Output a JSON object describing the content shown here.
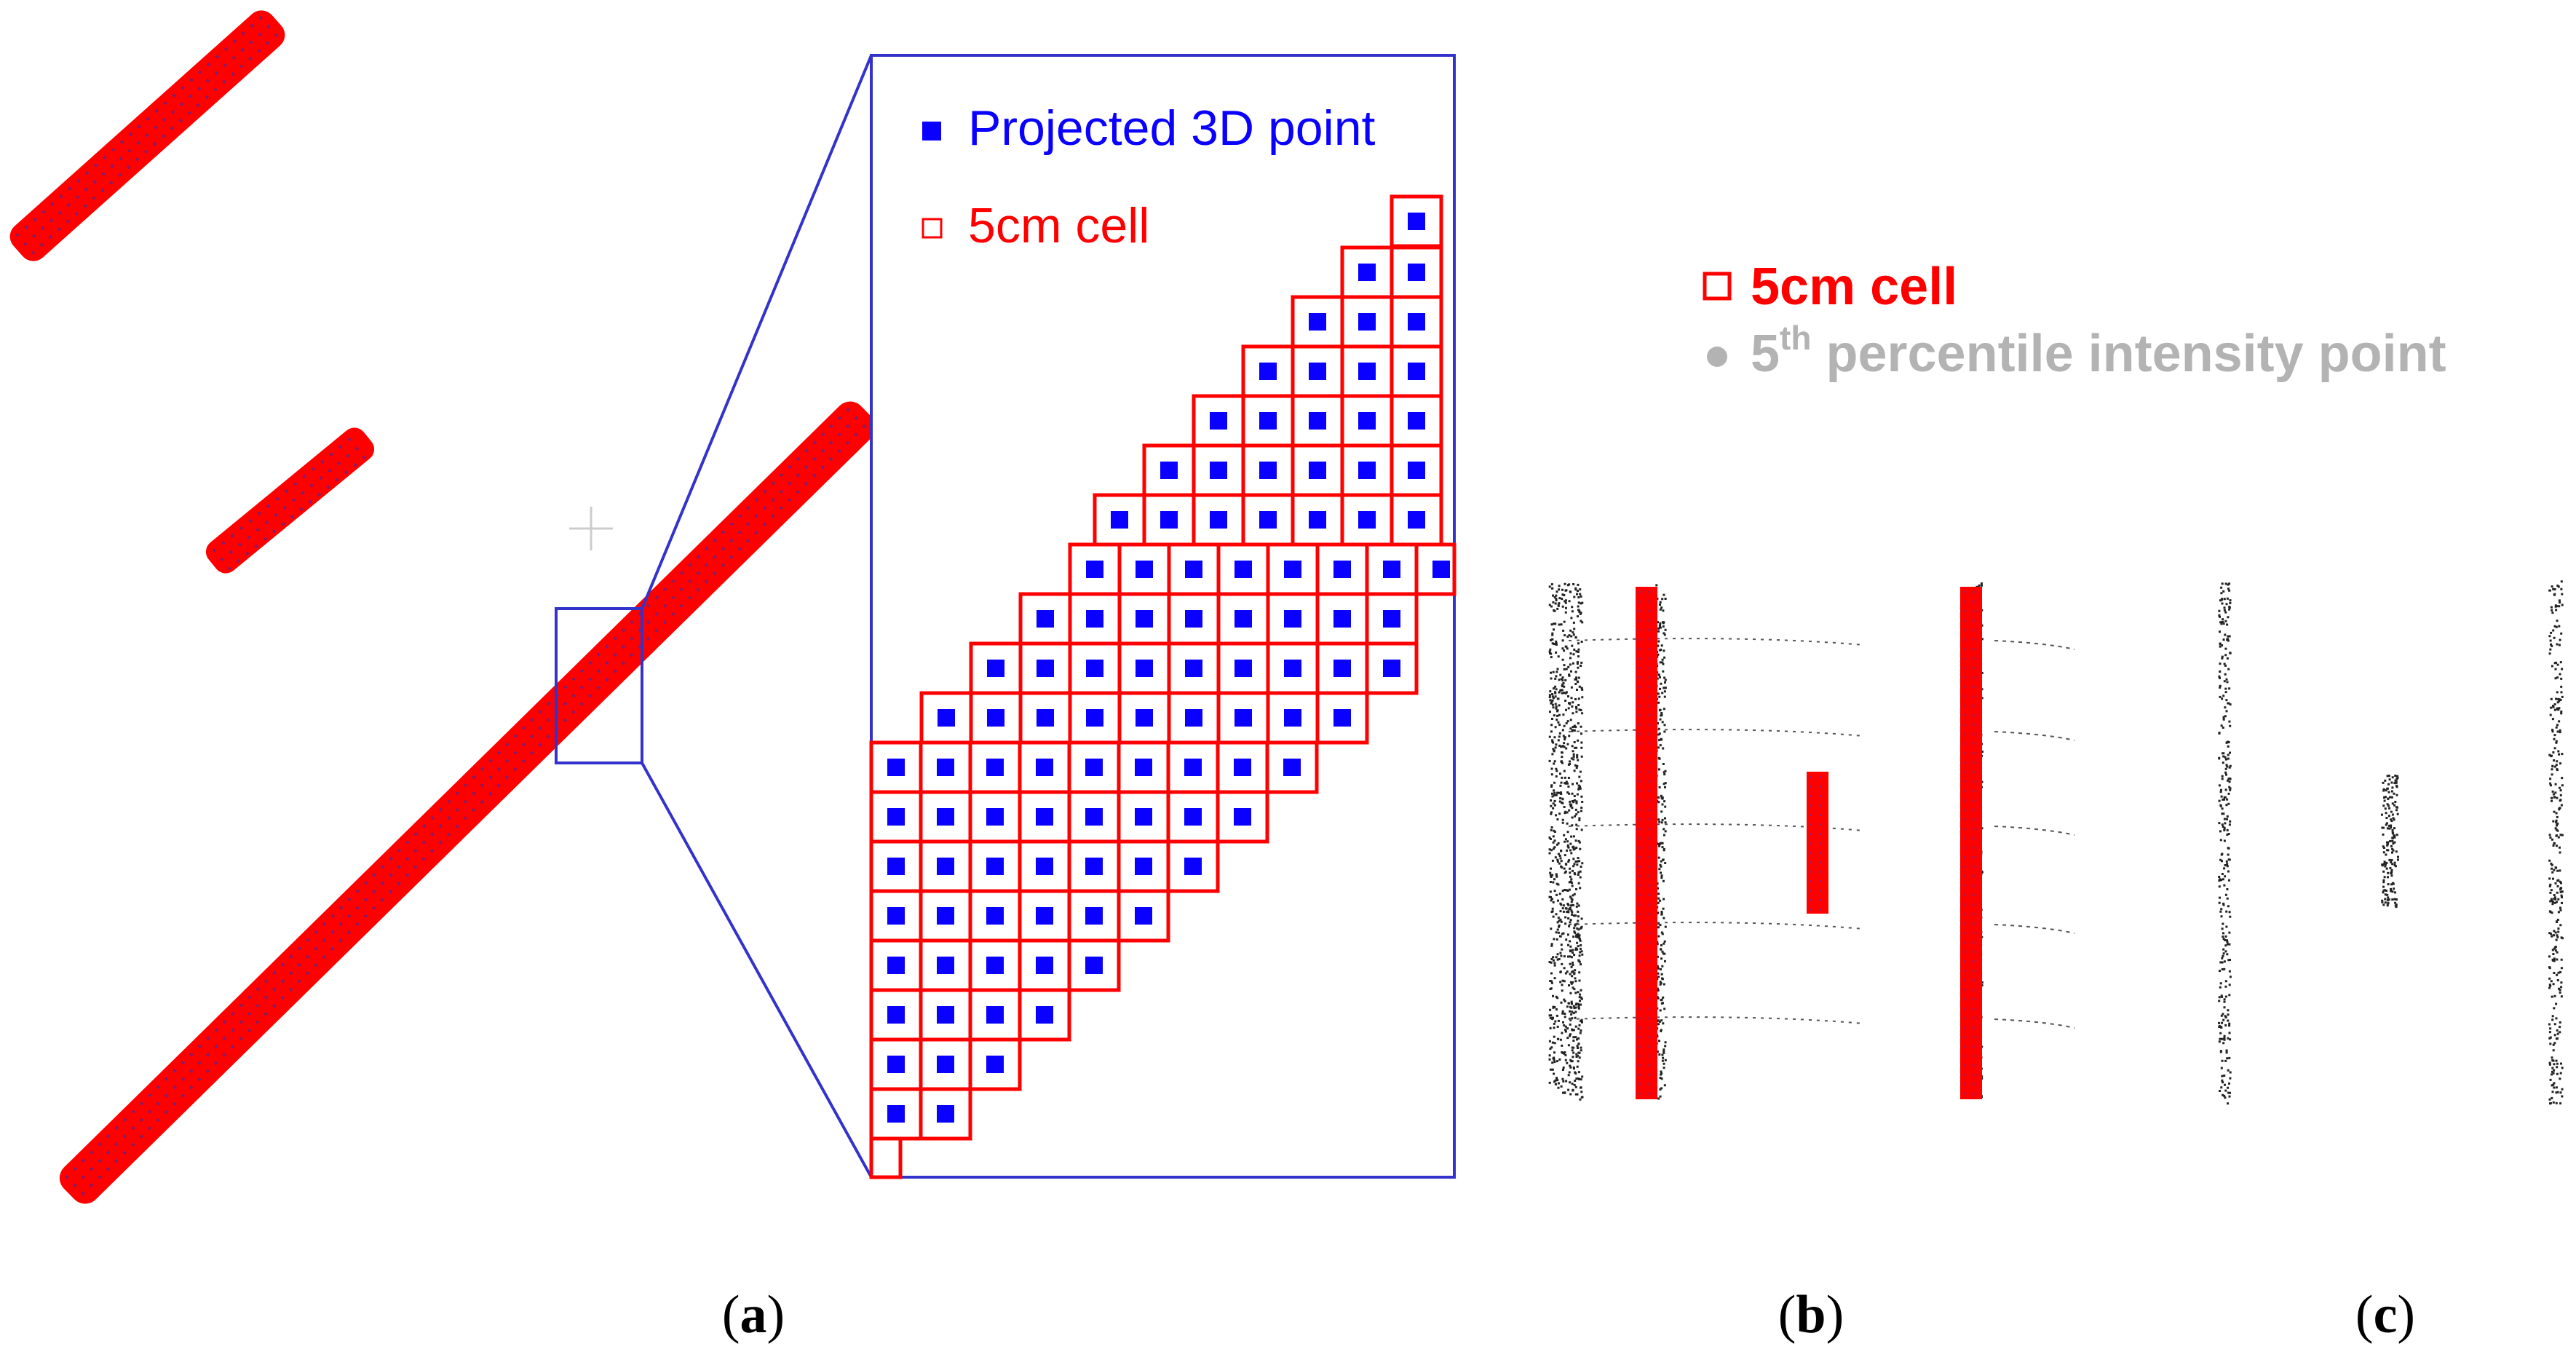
{
  "figure": {
    "panels": [
      {
        "id": "a",
        "caption_open": "(",
        "caption_letter": "a",
        "caption_close": ")"
      },
      {
        "id": "b",
        "caption_open": "(",
        "caption_letter": "b",
        "caption_close": ")"
      },
      {
        "id": "c",
        "caption_open": "(",
        "caption_letter": "c",
        "caption_close": ")"
      }
    ],
    "zoom_legend": {
      "point_label": "Projected 3D point",
      "cell_label": "5cm cell"
    },
    "panel_b_legend": {
      "cell_label": "5cm cell",
      "percentile_prefix": "5",
      "percentile_sup": "th",
      "percentile_rest": " percentile intensity point"
    }
  },
  "colors": {
    "point_blue": "#0a00ff",
    "cell_red": "#ff0000",
    "frame_blue": "#3333cc",
    "legend_grey": "#b3b3b3",
    "scatter_black": "#222222"
  },
  "icons": [
    "blue-square-marker-icon",
    "red-square-outline-icon",
    "grey-dot-icon",
    "crosshair-icon"
  ]
}
